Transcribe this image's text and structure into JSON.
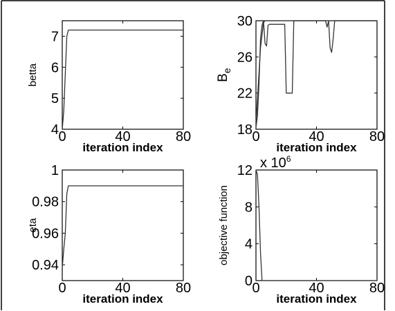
{
  "chart_data": [
    {
      "type": "line",
      "xlabel": "iteration index",
      "ylabel": "betta",
      "xlim": [
        0,
        80
      ],
      "ylim": [
        4,
        7.5
      ],
      "xticks": [
        0,
        40,
        80
      ],
      "yticks": [
        4,
        5,
        6,
        7
      ],
      "series": [
        {
          "x": [
            0,
            1,
            2,
            3,
            4,
            5,
            80
          ],
          "y": [
            4.0,
            4.6,
            5.8,
            7.0,
            7.2,
            7.2,
            7.2
          ]
        }
      ]
    },
    {
      "type": "line",
      "xlabel": "iteration index",
      "ylabel": "B",
      "ylabel_sub": "e",
      "xlim": [
        0,
        80
      ],
      "ylim": [
        18,
        30
      ],
      "xticks": [
        0,
        40,
        80
      ],
      "yticks": [
        18,
        22,
        26,
        30
      ],
      "series": [
        {
          "x": [
            0,
            1,
            2,
            3,
            4,
            5,
            6,
            7,
            8,
            9,
            10,
            11,
            19,
            20,
            24,
            25,
            46,
            47,
            48,
            49,
            50,
            51,
            52,
            80
          ],
          "y": [
            18.2,
            19.5,
            23,
            28,
            29.5,
            30,
            27.5,
            27.2,
            29.5,
            29.6,
            29.6,
            29.6,
            29.6,
            22,
            22,
            30,
            30,
            29.3,
            30,
            27,
            26.5,
            28,
            30,
            30
          ]
        },
        {
          "x": [
            0,
            3,
            5,
            6,
            80
          ],
          "y": [
            18.6,
            27,
            29.8,
            30,
            30
          ]
        }
      ]
    },
    {
      "type": "line",
      "xlabel": "iteration index",
      "ylabel": "eta",
      "xlim": [
        0,
        80
      ],
      "ylim": [
        0.93,
        1.0
      ],
      "xticks": [
        0,
        40,
        80
      ],
      "yticks": [
        0.94,
        0.96,
        0.98,
        1
      ],
      "series": [
        {
          "x": [
            0,
            1,
            2,
            3,
            4,
            5,
            80
          ],
          "y": [
            0.938,
            0.95,
            0.96,
            0.985,
            0.99,
            0.99,
            0.99
          ]
        }
      ]
    },
    {
      "type": "line",
      "xlabel": "iteration index",
      "ylabel": "objective function",
      "exponent_label": "x 10",
      "exponent_power": "6",
      "xlim": [
        0,
        80
      ],
      "ylim": [
        0,
        12
      ],
      "xticks": [
        0,
        40,
        80
      ],
      "yticks": [
        0,
        4,
        8,
        12
      ],
      "series": [
        {
          "x": [
            0,
            1,
            2,
            3,
            4,
            80
          ],
          "y": [
            12,
            11.5,
            8,
            3,
            0,
            0
          ]
        }
      ]
    }
  ]
}
